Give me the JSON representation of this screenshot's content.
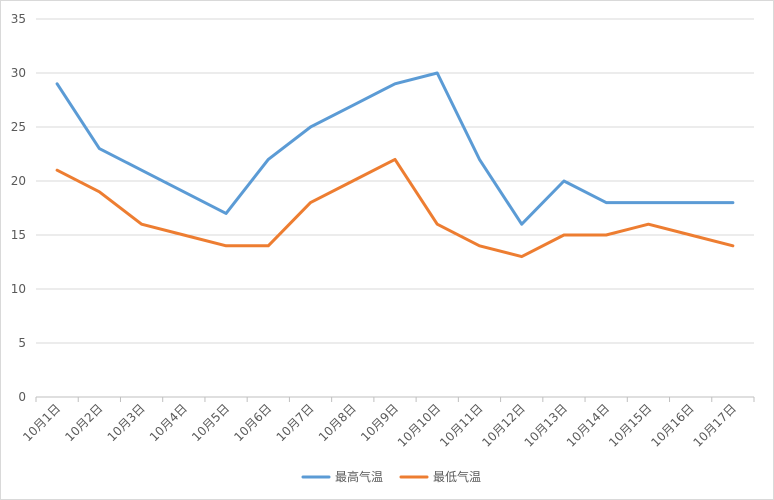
{
  "chart_data": {
    "type": "line",
    "categories": [
      "10月1日",
      "10月2日",
      "10月3日",
      "10月4日",
      "10月5日",
      "10月6日",
      "10月7日",
      "10月8日",
      "10月9日",
      "10月10日",
      "10月11日",
      "10月12日",
      "10月13日",
      "10月14日",
      "10月15日",
      "10月16日",
      "10月17日"
    ],
    "series": [
      {
        "name": "最高气温",
        "color": "#5b9bd5",
        "values": [
          29,
          23,
          21,
          19,
          17,
          22,
          25,
          27,
          29,
          30,
          22,
          16,
          20,
          18,
          18,
          18,
          18
        ]
      },
      {
        "name": "最低气温",
        "color": "#ed7d31",
        "values": [
          21,
          19,
          16,
          15,
          14,
          14,
          18,
          20,
          22,
          16,
          14,
          13,
          15,
          15,
          16,
          15,
          14
        ]
      }
    ],
    "ylim": [
      0,
      35
    ],
    "yticks": [
      0,
      5,
      10,
      15,
      20,
      25,
      30,
      35
    ],
    "grid": true,
    "legend_position": "bottom"
  }
}
